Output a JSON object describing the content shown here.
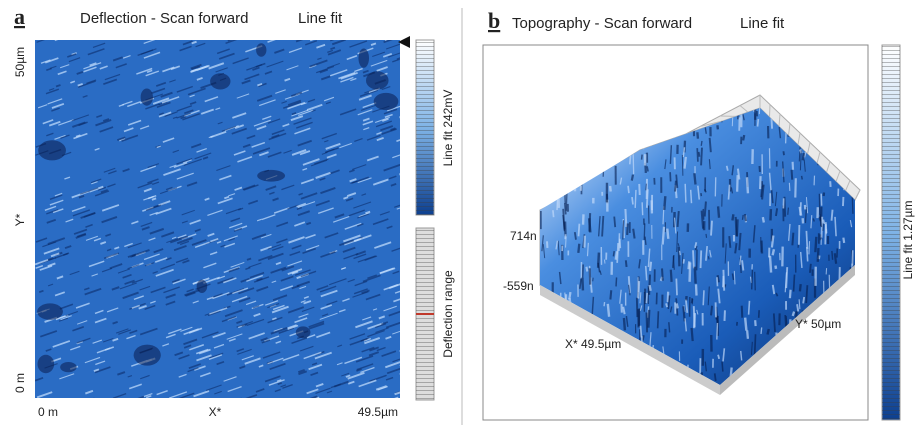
{
  "panel_a": {
    "label": "a",
    "title": "Deflection - Scan forward",
    "mode": "Line fit",
    "y_axis": {
      "top": "50µm",
      "middle": "Y*",
      "bottom": "0 m"
    },
    "x_axis": {
      "left": "0 m",
      "middle": "X*",
      "right": "49.5µm"
    },
    "colorbar_top": "Line fit 242mV",
    "colorbar_bottom": "Deflection range"
  },
  "panel_b": {
    "label": "b",
    "title": "Topography - Scan forward",
    "mode": "Line fit",
    "z_top": "714n",
    "z_bottom": "-559n",
    "x_label": "X* 49.5µm",
    "y_label": "Y* 50µm",
    "colorbar": "Line fit 1.27µm"
  }
}
